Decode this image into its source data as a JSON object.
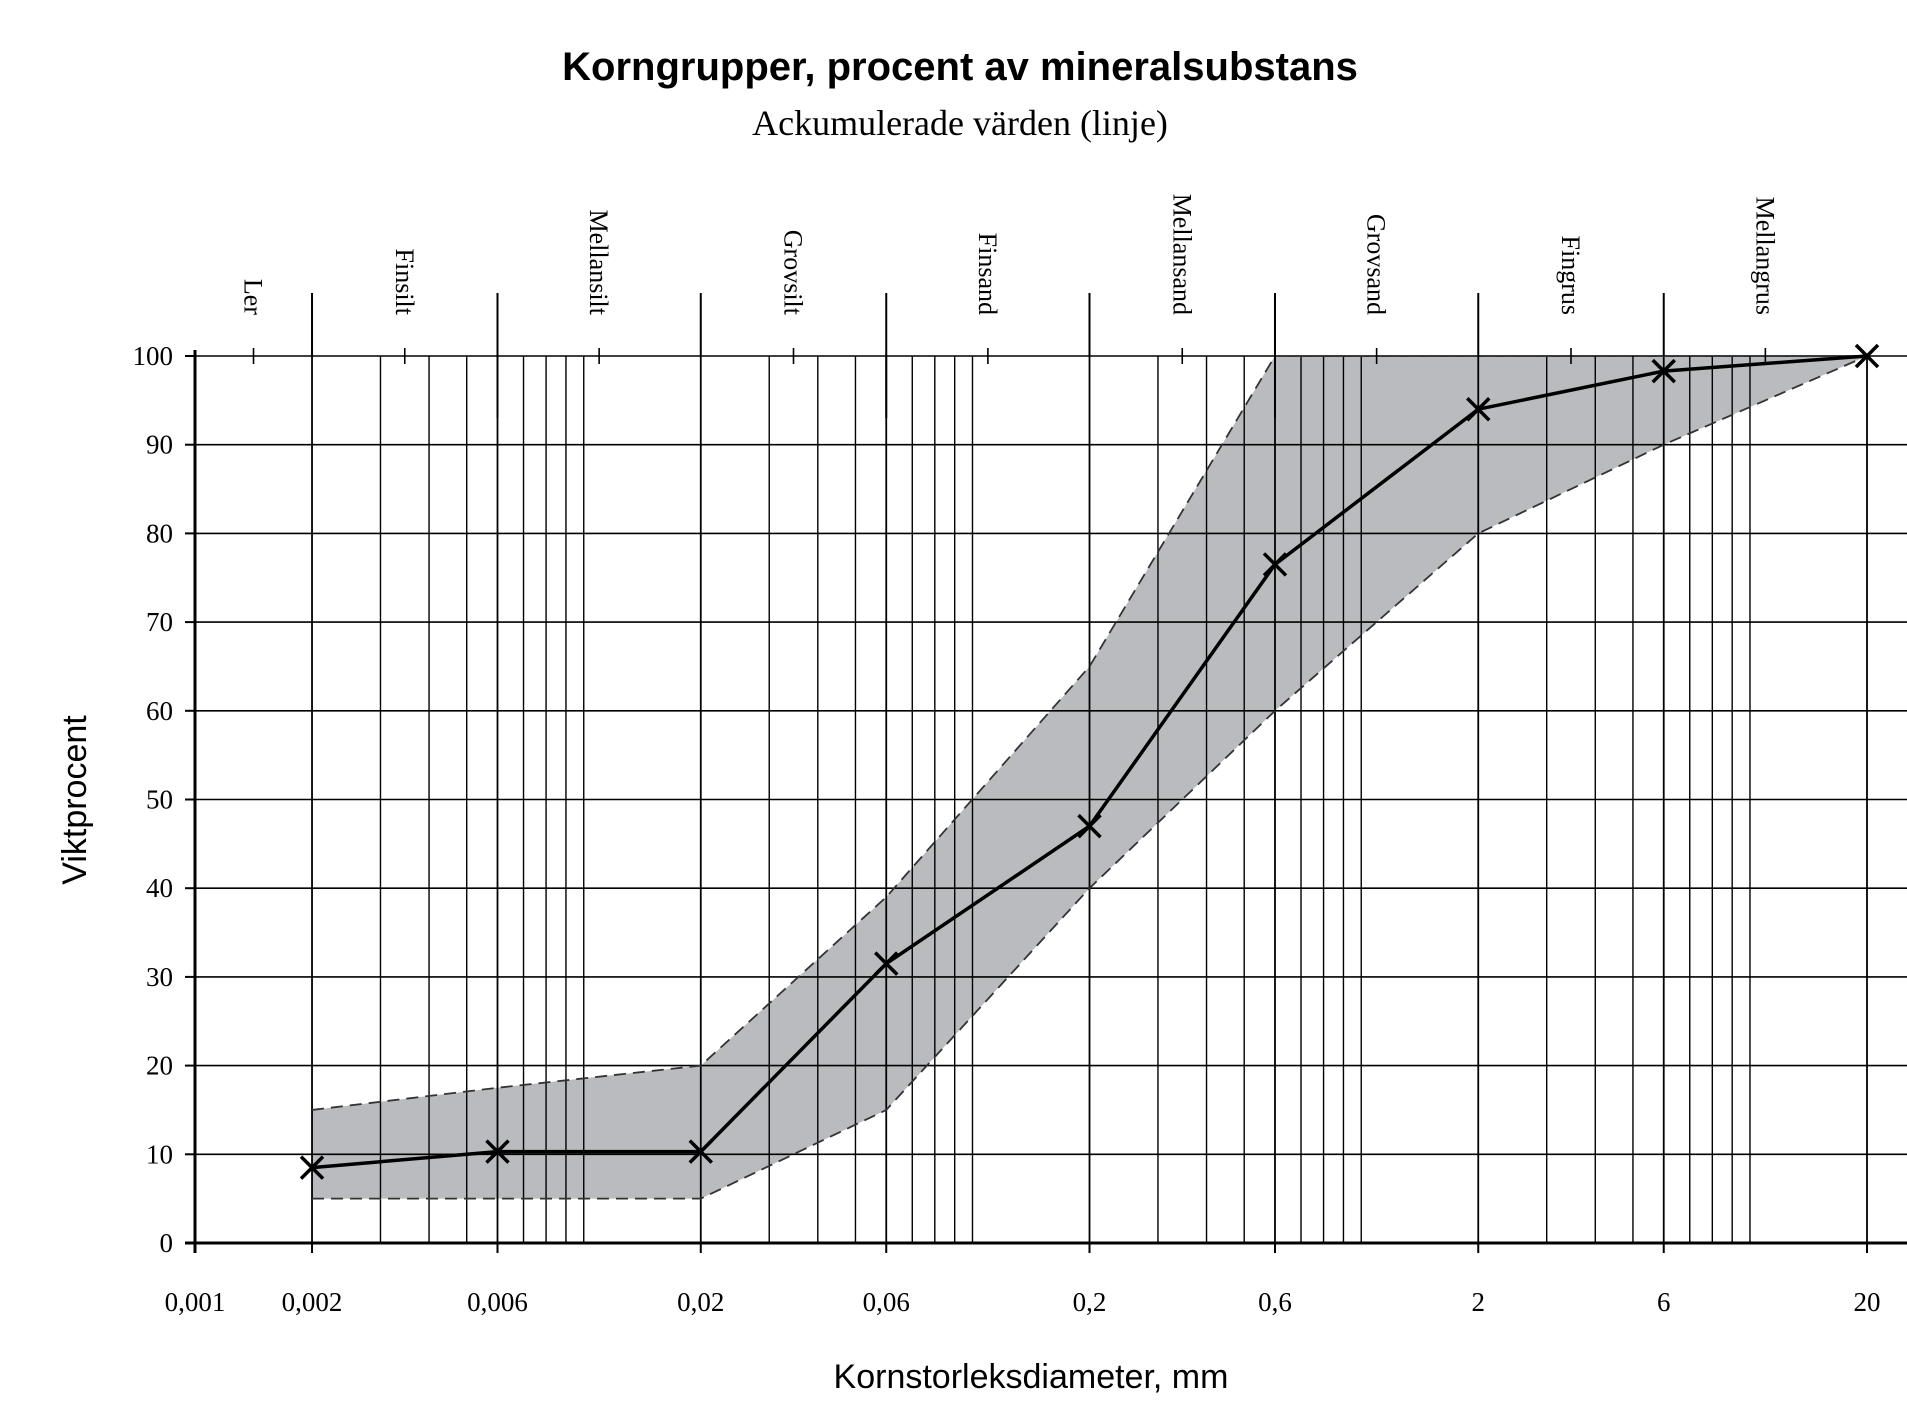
{
  "chart_data": {
    "type": "line",
    "title": "Korngrupper, procent av mineralsubstans",
    "subtitle": "Ackumulerade värden (linje)",
    "y_label": "Viktprocent",
    "x_label": "Kornstorleksdiameter, mm",
    "x_scale": "log",
    "x": [
      0.002,
      0.006,
      0.02,
      0.06,
      0.2,
      0.6,
      2,
      6,
      20
    ],
    "series": [
      {
        "color": "#000000",
        "values": [
          8.5,
          10.3,
          10.3,
          31.5,
          47,
          76.5,
          94,
          98.3,
          100
        ]
      }
    ],
    "band": {
      "color": "#b9bbbe",
      "upper": [
        15,
        17.5,
        20,
        39,
        65,
        100,
        100,
        100,
        100
      ],
      "lower": [
        5,
        5,
        5,
        15,
        40,
        60,
        80,
        90,
        100
      ]
    },
    "xlim": [
      0.001,
      20
    ],
    "xticks": [
      {
        "value": 0.001,
        "label": "0,001"
      },
      {
        "value": 0.002,
        "label": "0,002"
      },
      {
        "value": 0.006,
        "label": "0,006"
      },
      {
        "value": 0.02,
        "label": "0,02"
      },
      {
        "value": 0.06,
        "label": "0,06"
      },
      {
        "value": 0.2,
        "label": "0,2"
      },
      {
        "value": 0.6,
        "label": "0,6"
      },
      2,
      6,
      20
    ],
    "xminorticks": [
      0.003,
      0.004,
      0.005,
      0.007,
      0.008,
      0.009,
      0.01,
      0.03,
      0.04,
      0.05,
      0.07,
      0.08,
      0.09,
      0.1,
      0.3,
      0.4,
      0.5,
      0.7,
      0.8,
      0.9,
      1,
      3,
      4,
      5,
      7,
      8,
      9,
      10
    ],
    "ylim": [
      0,
      100
    ],
    "yticks": [
      0,
      10,
      20,
      30,
      40,
      50,
      60,
      70,
      80,
      90,
      100
    ],
    "grid": true,
    "fractions": {
      "labels": [
        "Ler",
        "Finsilt",
        "Mellansilt",
        "Grovsilt",
        "Finsand",
        "Mellansand",
        "Grovsand",
        "Fingrus",
        "Mellangrus"
      ],
      "bounds": [
        0.001,
        0.002,
        0.006,
        0.02,
        0.06,
        0.2,
        0.6,
        2,
        6,
        20
      ]
    }
  }
}
